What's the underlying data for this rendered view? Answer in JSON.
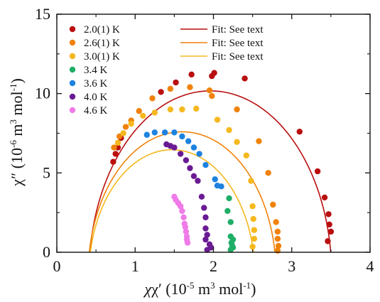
{
  "chart_data": {
    "type": "scatter",
    "title": "",
    "xlabel": {
      "pre": "χ′ (10",
      "exp1": "-5",
      "mid": " m",
      "exp2": "3",
      "post": " mol",
      "exp3": "-1",
      "close": ")"
    },
    "ylabel": {
      "pre": "χ″ (10",
      "exp1": "-6",
      "mid": " m",
      "exp2": "3",
      "post": " mol",
      "exp3": "-1",
      "close": ")"
    },
    "xlim": [
      0,
      4
    ],
    "ylim": [
      0,
      15
    ],
    "xticks": [
      "0",
      "1",
      "2",
      "3",
      "4"
    ],
    "yticks": [
      "0",
      "5",
      "10",
      "15"
    ],
    "grid": false,
    "legend_position": "top",
    "series": [
      {
        "name": "2.0(1) K",
        "color": "#b90f0f",
        "points": [
          [
            0.72,
            5.7
          ],
          [
            0.75,
            6.2
          ],
          [
            0.78,
            6.6
          ],
          [
            0.82,
            7.2
          ],
          [
            1.33,
            10.1
          ],
          [
            1.52,
            10.7
          ],
          [
            1.72,
            11.2
          ],
          [
            1.98,
            11.1
          ],
          [
            2.01,
            11.3
          ],
          [
            2.4,
            10.95
          ],
          [
            3.1,
            7.6
          ],
          [
            3.33,
            5.1
          ],
          [
            3.42,
            3.45
          ],
          [
            3.47,
            2.4
          ],
          [
            3.48,
            1.75
          ],
          [
            3.5,
            1.3
          ],
          [
            3.46,
            0.7
          ]
        ]
      },
      {
        "name": "2.6(1) K",
        "color": "#f0820a",
        "points": [
          [
            0.73,
            6.6
          ],
          [
            0.8,
            7.3
          ],
          [
            0.88,
            7.9
          ],
          [
            0.95,
            8.3
          ],
          [
            1.05,
            8.9
          ],
          [
            1.22,
            9.7
          ],
          [
            1.45,
            10.3
          ],
          [
            1.7,
            10.4
          ],
          [
            1.95,
            10.2
          ],
          [
            1.98,
            9.85
          ],
          [
            2.3,
            9.0
          ],
          [
            2.58,
            7.0
          ],
          [
            2.7,
            5.0
          ],
          [
            2.76,
            3.0
          ],
          [
            2.8,
            1.9
          ],
          [
            2.82,
            1.3
          ],
          [
            2.82,
            0.85
          ],
          [
            2.83,
            0.4
          ],
          [
            2.82,
            0.1
          ]
        ]
      },
      {
        "name": "3.0(1) K",
        "color": "#f5b81e",
        "points": [
          [
            0.78,
            6.9
          ],
          [
            0.85,
            7.5
          ],
          [
            0.95,
            8.1
          ],
          [
            1.1,
            8.6
          ],
          [
            1.25,
            8.8
          ],
          [
            1.45,
            9.0
          ],
          [
            1.6,
            9.0
          ],
          [
            1.78,
            9.05
          ],
          [
            2.05,
            8.35
          ],
          [
            2.2,
            7.7
          ],
          [
            2.3,
            6.95
          ],
          [
            2.42,
            6.1
          ],
          [
            2.48,
            4.5
          ],
          [
            2.5,
            2.9
          ],
          [
            2.51,
            2.1
          ],
          [
            2.52,
            1.4
          ],
          [
            2.52,
            0.85
          ],
          [
            2.5,
            0.35
          ]
        ]
      },
      {
        "name": "3.4 K",
        "color": "#1fae66",
        "points": [
          [
            2.2,
            3.4
          ],
          [
            2.18,
            2.6
          ],
          [
            2.22,
            1.9
          ],
          [
            2.22,
            1.0
          ],
          [
            2.25,
            0.8
          ],
          [
            2.23,
            0.6
          ],
          [
            2.24,
            0.4
          ],
          [
            2.25,
            0.3
          ],
          [
            2.22,
            0.15
          ]
        ]
      },
      {
        "name": "3.6 K",
        "color": "#1d82e0",
        "points": [
          [
            1.15,
            7.4
          ],
          [
            1.25,
            7.55
          ],
          [
            1.38,
            7.55
          ],
          [
            1.5,
            7.55
          ],
          [
            1.6,
            7.3
          ],
          [
            1.68,
            7.0
          ],
          [
            1.75,
            6.6
          ],
          [
            1.82,
            6.2
          ],
          [
            1.9,
            5.5
          ],
          [
            2.02,
            4.6
          ],
          [
            2.05,
            4.2
          ],
          [
            2.1,
            4.15
          ]
        ]
      },
      {
        "name": "4.0 K",
        "color": "#6a1b94",
        "points": [
          [
            1.4,
            6.8
          ],
          [
            1.45,
            6.7
          ],
          [
            1.5,
            6.6
          ],
          [
            1.58,
            6.2
          ],
          [
            1.65,
            5.8
          ],
          [
            1.7,
            5.3
          ],
          [
            1.75,
            4.8
          ],
          [
            1.8,
            4.5
          ],
          [
            1.85,
            3.5
          ],
          [
            1.88,
            2.8
          ],
          [
            1.9,
            2.2
          ],
          [
            1.9,
            1.5
          ],
          [
            1.92,
            1.1
          ],
          [
            1.9,
            0.8
          ],
          [
            1.95,
            0.5
          ],
          [
            1.97,
            0.3
          ],
          [
            1.92,
            0.15
          ]
        ]
      },
      {
        "name": "4.6 K",
        "color": "#f07be8",
        "points": [
          [
            1.5,
            3.5
          ],
          [
            1.52,
            3.3
          ],
          [
            1.55,
            3.1
          ],
          [
            1.58,
            2.9
          ],
          [
            1.6,
            2.6
          ],
          [
            1.62,
            2.2
          ],
          [
            1.63,
            1.8
          ],
          [
            1.64,
            1.6
          ],
          [
            1.65,
            1.3
          ],
          [
            1.66,
            1.0
          ],
          [
            1.66,
            0.8
          ],
          [
            1.67,
            0.6
          ]
        ]
      }
    ],
    "fits": [
      {
        "name": "Fit: See text",
        "color": "#b90f0f",
        "center_x": 1.96,
        "radius": 1.55,
        "depression_alpha": 0.08
      },
      {
        "name": "Fit: See text",
        "color": "#f0820a",
        "center_x": 1.6,
        "radius": 1.2,
        "depression_alpha": 0.1
      },
      {
        "name": "Fit: See text",
        "color": "#f5b81e",
        "center_x": 1.47,
        "radius": 1.06,
        "depression_alpha": 0.12
      }
    ]
  }
}
